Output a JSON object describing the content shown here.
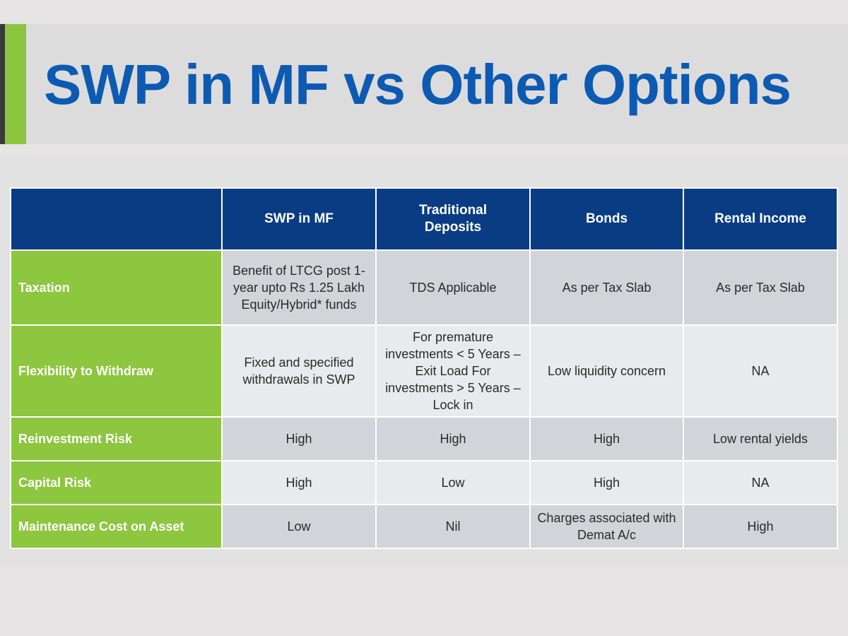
{
  "title": "SWP in MF vs Other Options",
  "table": {
    "headers": [
      "",
      "SWP in MF",
      "Traditional Deposits",
      "Bonds",
      "Rental Income"
    ],
    "rows": [
      {
        "label": "Taxation",
        "cells": [
          "Benefit of LTCG post 1-year upto Rs 1.25 Lakh Equity/Hybrid* funds",
          "TDS Applicable",
          "As per Tax Slab",
          "As per Tax Slab"
        ]
      },
      {
        "label": "Flexibility to Withdraw",
        "cells": [
          "Fixed and specified withdrawals in SWP",
          "For premature investments < 5 Years – Exit Load For investments > 5 Years – Lock in",
          "Low liquidity concern",
          "NA"
        ]
      },
      {
        "label": "Reinvestment Risk",
        "cells": [
          "High",
          "High",
          "High",
          "Low rental yields"
        ]
      },
      {
        "label": "Capital Risk",
        "cells": [
          "High",
          "Low",
          "High",
          "NA"
        ]
      },
      {
        "label": "Maintenance Cost on Asset",
        "cells": [
          "Low",
          "Nil",
          "Charges associated with Demat A/c",
          "High"
        ]
      }
    ]
  },
  "colors": {
    "title": "#0d5ab2",
    "header": "#0a3c83",
    "label": "#8dc63f"
  }
}
